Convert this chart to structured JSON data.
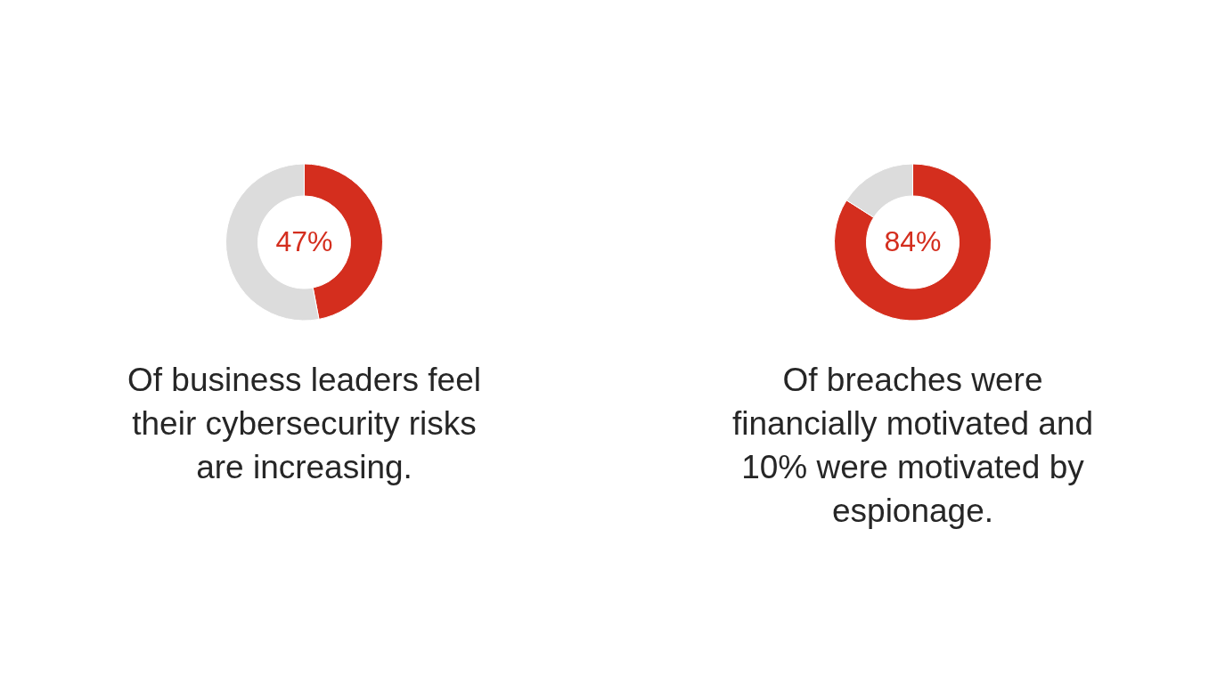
{
  "chart_data": [
    {
      "type": "donut",
      "categories": [
        null,
        null
      ],
      "values": [
        47,
        53
      ],
      "colors": [
        "#d42e1e",
        "#dcdcdc"
      ],
      "value_labels": [
        "47%",
        null
      ],
      "annotations": [
        "Of business leaders feel their cybersecurity risks are increasing."
      ]
    },
    {
      "type": "donut",
      "categories": [
        null,
        null
      ],
      "values": [
        84,
        16
      ],
      "colors": [
        "#d42e1e",
        "#dcdcdc"
      ],
      "value_labels": [
        "84%",
        null
      ],
      "annotations": [
        "Of breaches were financially motivated and 10% were motivated by espionage."
      ]
    }
  ]
}
